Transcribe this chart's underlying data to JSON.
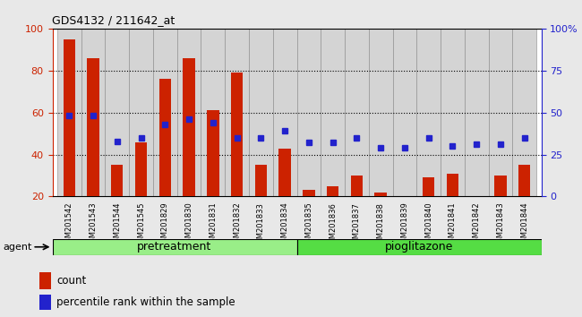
{
  "title": "GDS4132 / 211642_at",
  "samples": [
    "GSM201542",
    "GSM201543",
    "GSM201544",
    "GSM201545",
    "GSM201829",
    "GSM201830",
    "GSM201831",
    "GSM201832",
    "GSM201833",
    "GSM201834",
    "GSM201835",
    "GSM201836",
    "GSM201837",
    "GSM201838",
    "GSM201839",
    "GSM201840",
    "GSM201841",
    "GSM201842",
    "GSM201843",
    "GSM201844"
  ],
  "count_values": [
    95,
    86,
    35,
    46,
    76,
    86,
    61,
    79,
    35,
    43,
    23,
    25,
    30,
    22,
    20,
    29,
    31,
    20,
    30,
    35
  ],
  "percentile_values": [
    48,
    48,
    33,
    35,
    43,
    46,
    44,
    35,
    35,
    39,
    32,
    32,
    35,
    29,
    29,
    35,
    30,
    31,
    31,
    35
  ],
  "pretreatment_count": 10,
  "pioglitazone_count": 10,
  "left_ylim": [
    20,
    100
  ],
  "right_ylim": [
    0,
    100
  ],
  "left_yticks": [
    20,
    40,
    60,
    80,
    100
  ],
  "right_yticks": [
    0,
    25,
    50,
    75,
    100
  ],
  "right_yticklabels": [
    "0",
    "25",
    "50",
    "75",
    "100%"
  ],
  "bar_color": "#cc2200",
  "percentile_color": "#2222cc",
  "pretreatment_color": "#99ee88",
  "pioglitazone_color": "#55dd44",
  "agent_label": "agent",
  "pretreatment_label": "pretreatment",
  "pioglitazone_label": "pioglitazone",
  "legend_count_label": "count",
  "legend_percentile_label": "percentile rank within the sample",
  "background_color": "#e8e8e8",
  "plot_bg_color": "#ffffff",
  "bar_width": 0.5,
  "cell_color": "#d4d4d4"
}
